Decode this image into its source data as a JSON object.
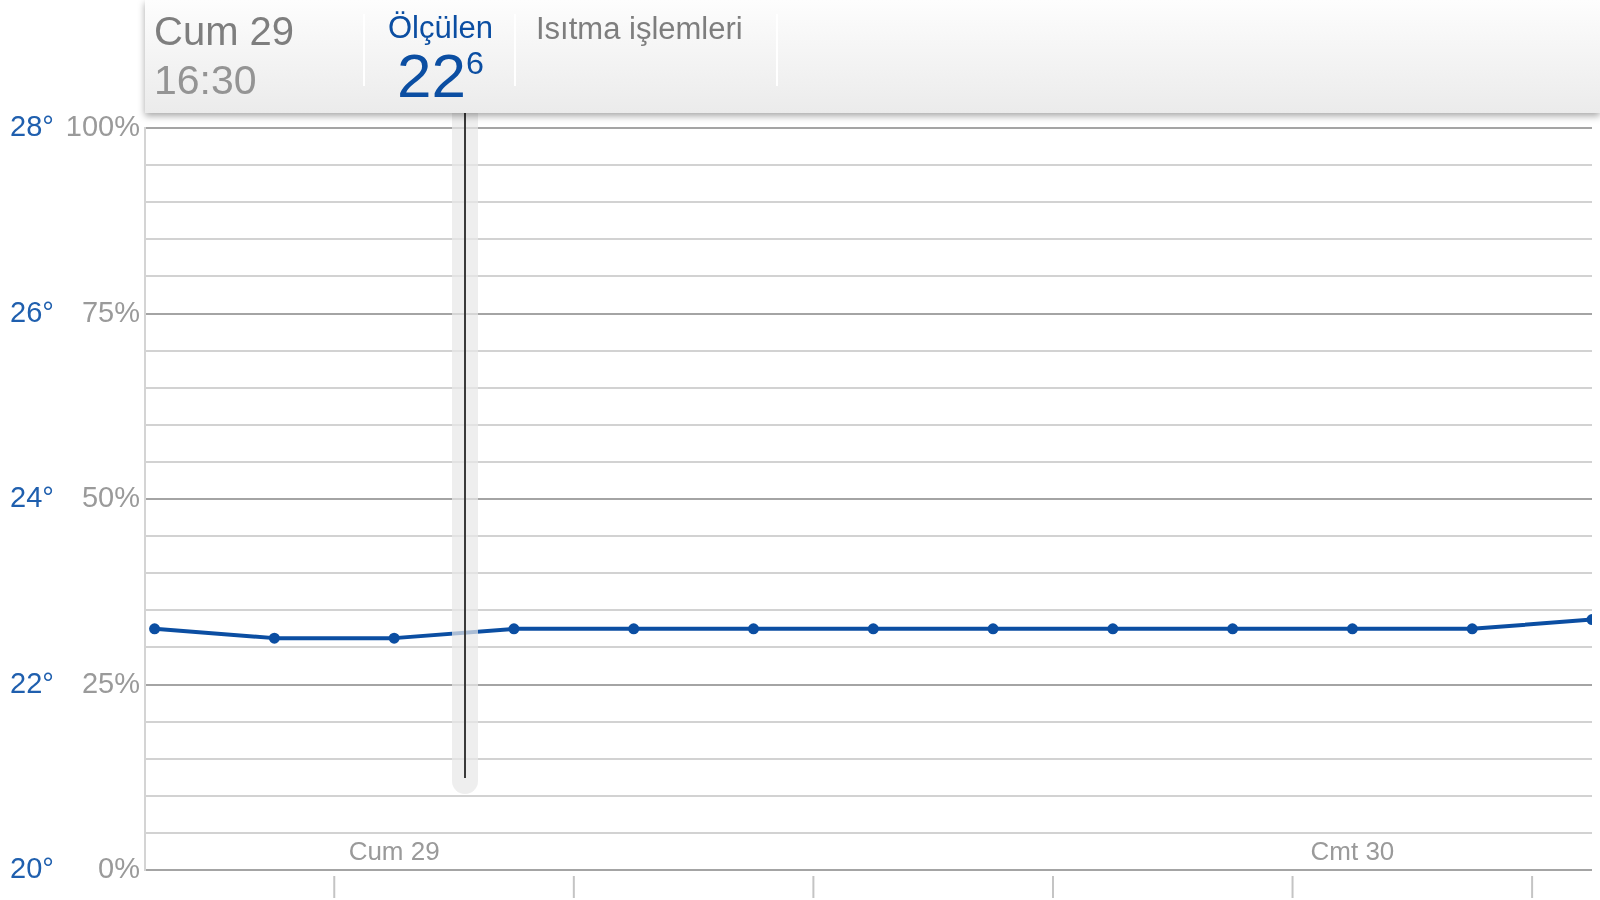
{
  "chart_data": {
    "type": "line",
    "annotations": [
      "Cum 29",
      "16:30",
      "22$^{6}$",
      "Isıtma işlemleri"
    ],
    "categories": [
      null,
      null,
      "Cum 29",
      null,
      null,
      null,
      null,
      null,
      null,
      null,
      "Cmt 30",
      null,
      null
    ],
    "series": [
      {
        "name": "Ölçülen",
        "color": "#0b4ea2",
        "values": [
          22.6,
          22.5,
          22.5,
          22.6,
          22.6,
          22.6,
          22.6,
          22.6,
          22.6,
          22.6,
          22.6,
          22.6,
          22.7
        ]
      }
    ],
    "ylim": [
      20,
      28
    ],
    "yticks": [
      {
        "value": 20,
        "label": "20°"
      },
      {
        "value": 20.4,
        "label": null
      },
      {
        "value": 20.8,
        "label": null
      },
      {
        "value": 21.2,
        "label": null
      },
      {
        "value": 21.6,
        "label": null
      },
      {
        "value": 22,
        "label": "22°"
      },
      {
        "value": 22.4,
        "label": null
      },
      {
        "value": 22.8,
        "label": null
      },
      {
        "value": 23.2,
        "label": null
      },
      {
        "value": 23.6,
        "label": null
      },
      {
        "value": 24,
        "label": "24°"
      },
      {
        "value": 24.4,
        "label": null
      },
      {
        "value": 24.8,
        "label": null
      },
      {
        "value": 25.2,
        "label": null
      },
      {
        "value": 25.6,
        "label": null
      },
      {
        "value": 26,
        "label": "26°"
      },
      {
        "value": 26.4,
        "label": null
      },
      {
        "value": 26.8,
        "label": null
      },
      {
        "value": 27.2,
        "label": null
      },
      {
        "value": 27.6,
        "label": null
      },
      {
        "value": 28,
        "label": "28°"
      }
    ],
    "y2lim": [
      0,
      100
    ],
    "y2ticks": [
      {
        "value": 0,
        "label": "0%"
      },
      {
        "value": 25,
        "label": "25%"
      },
      {
        "value": 50,
        "label": "50%"
      },
      {
        "value": 75,
        "label": "75%"
      },
      {
        "value": 100,
        "label": "100%"
      }
    ],
    "grid": "y",
    "marker": "circle",
    "line_style": "solid"
  }
}
